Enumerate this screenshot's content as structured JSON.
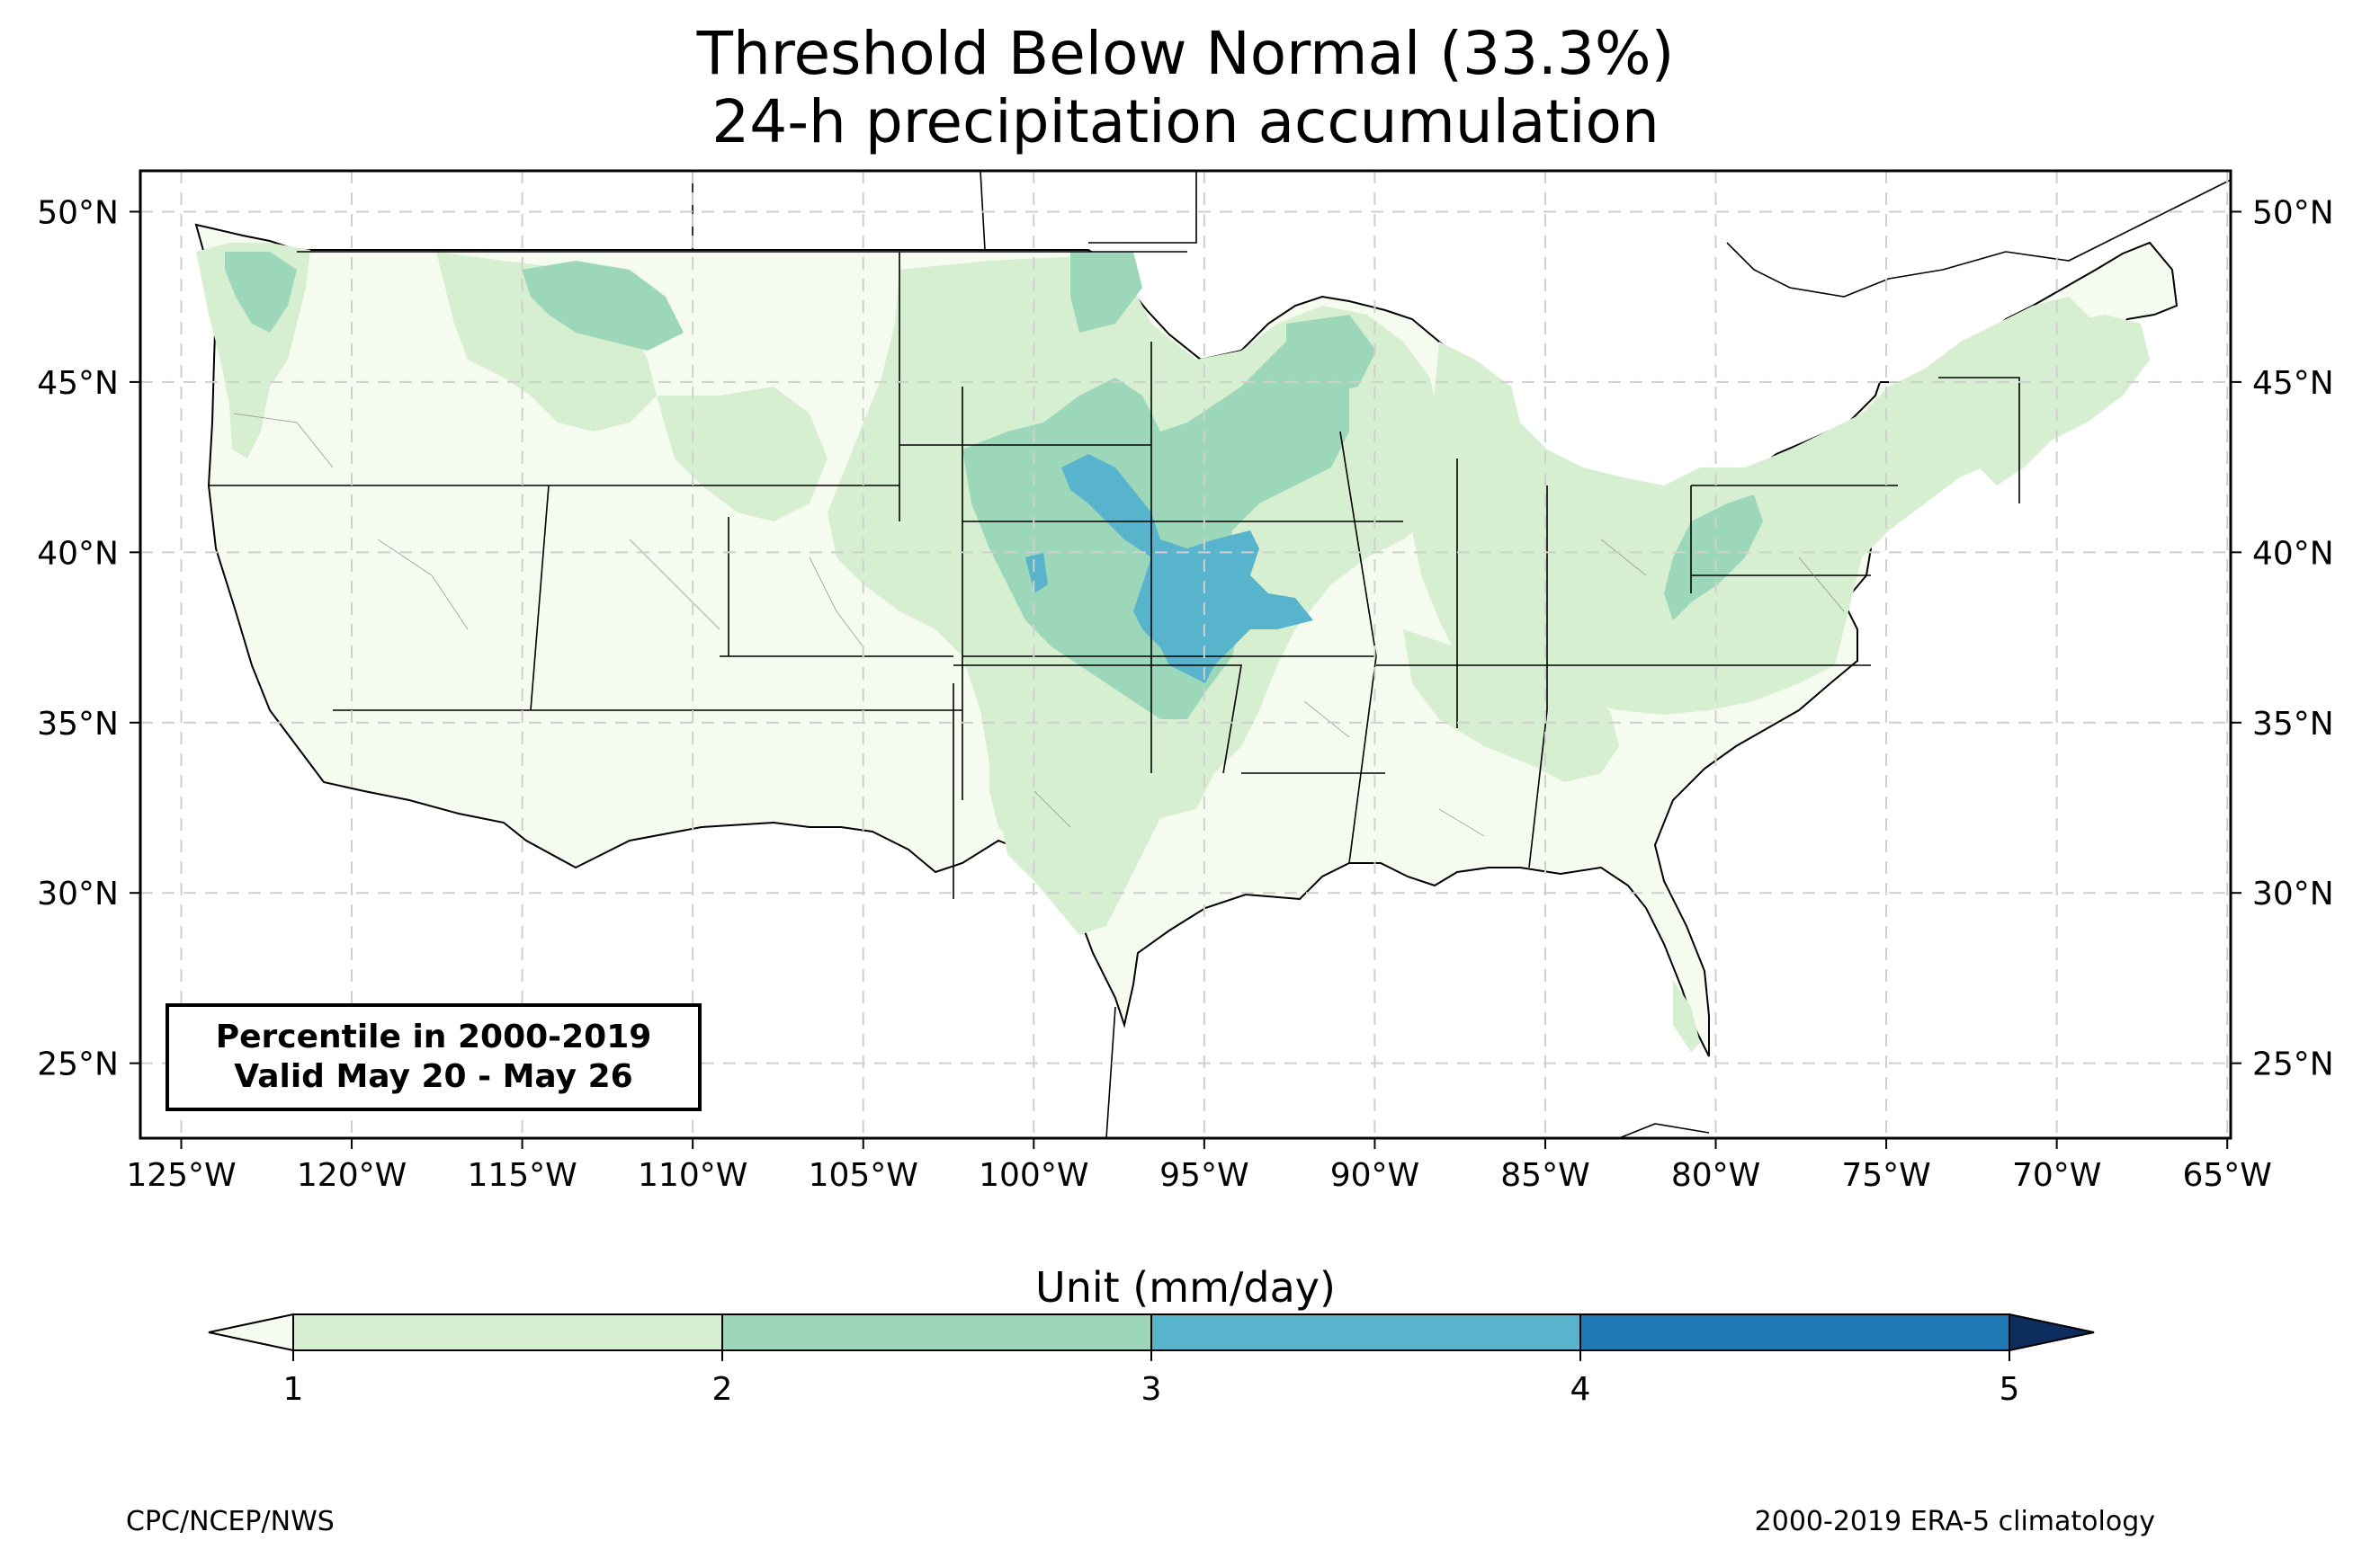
{
  "title": {
    "line1": "Threshold Below Normal (33.3%)",
    "line2": "24-h precipitation accumulation"
  },
  "map": {
    "projection": "PlateCarree",
    "extent": {
      "lon_min": -126.2,
      "lon_max": -64.9,
      "lat_min": 22.8,
      "lat_max": 51.2
    },
    "grid": "dashed",
    "lon_ticks": [
      "125°W",
      "120°W",
      "115°W",
      "110°W",
      "105°W",
      "100°W",
      "95°W",
      "90°W",
      "85°W",
      "80°W",
      "75°W",
      "70°W",
      "65°W"
    ],
    "lat_ticks": [
      "50°N",
      "45°N",
      "40°N",
      "35°N",
      "30°N",
      "25°N"
    ],
    "lon_values": [
      -125,
      -120,
      -115,
      -110,
      -105,
      -100,
      -95,
      -90,
      -85,
      -80,
      -75,
      -70,
      -65
    ],
    "lat_values": [
      50,
      45,
      40,
      35,
      30,
      25
    ]
  },
  "info_box": {
    "line1": "Percentile in 2000-2019",
    "line2": "Valid May 20 - May 26"
  },
  "colorbar": {
    "title": "Unit (mm/day)",
    "tick_labels": [
      "1",
      "2",
      "3",
      "4",
      "5"
    ],
    "levels": [
      1,
      2,
      3,
      4,
      5
    ],
    "colors": [
      "#d6efd0",
      "#9dd7ba",
      "#58b4cc",
      "#1f77b4",
      "#0c2d5e"
    ],
    "under_color": "#f5fbef",
    "extend": "both"
  },
  "footer": {
    "left": "CPC/NCEP/NWS",
    "right": "2000-2019 ERA-5 climatology"
  },
  "regions": [
    {
      "name": "pacific-northwest-green",
      "level": 1
    },
    {
      "name": "great-plains-green",
      "level": 1
    },
    {
      "name": "great-lakes-green",
      "level": 1
    },
    {
      "name": "central-plains-mid",
      "level": 2
    },
    {
      "name": "nebraska-kansas-blue",
      "level": 3
    }
  ]
}
